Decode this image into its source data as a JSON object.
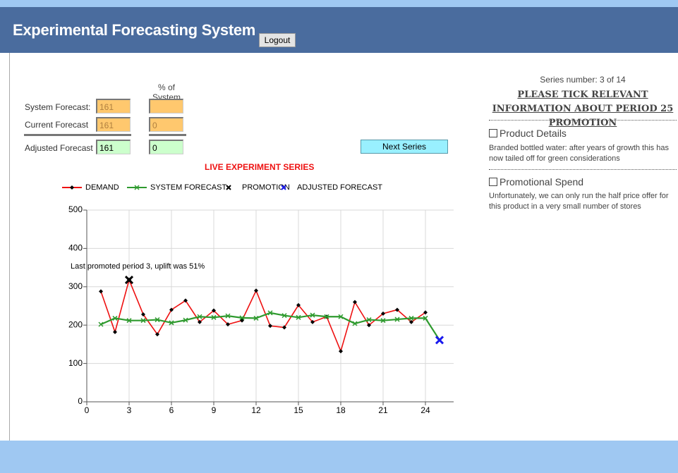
{
  "header": {
    "title": "Experimental Forecasting System",
    "logout": "Logout"
  },
  "form": {
    "percent_header": "% of System Forecast",
    "rows": [
      {
        "label": "System Forecast:",
        "value": 161,
        "percent": null
      },
      {
        "label": "Current Forecast",
        "value": 161,
        "percent": 0
      },
      {
        "label": "Adjusted Forecast",
        "value": 161,
        "percent": 0
      }
    ],
    "next_button": "Next Series"
  },
  "panel": {
    "series_number": "Series number: 3 of 14",
    "heading": "PLEASE TICK RELEVANT INFORMATION ABOUT PERIOD 25 PROMOTION",
    "items": [
      {
        "label": "Product Details",
        "description": "Branded bottled water: after years of growth this has now tailed off for green considerations"
      },
      {
        "label": "Promotional Spend",
        "description": "Unfortunately, we can only run the half price offer for this product in a very small number of stores"
      }
    ]
  },
  "chart_data": {
    "type": "line",
    "title": "LIVE EXPERIMENT SERIES",
    "annotation": "Last promoted period 3, uplift was 51%",
    "xlim": [
      0,
      26
    ],
    "xticks": [
      0,
      3,
      6,
      9,
      12,
      15,
      18,
      21,
      24
    ],
    "ylim": [
      0,
      500
    ],
    "yticks": [
      0,
      100,
      200,
      300,
      400,
      500
    ],
    "grid": true,
    "series": [
      {
        "name": "DEMAND",
        "color": "#ee1111",
        "marker": "diamond",
        "line": true,
        "x": [
          1,
          2,
          3,
          4,
          5,
          6,
          7,
          8,
          9,
          10,
          11,
          12,
          13,
          14,
          15,
          16,
          17,
          18,
          19,
          20,
          21,
          22,
          23,
          24
        ],
        "values": [
          288,
          182,
          318,
          228,
          176,
          240,
          264,
          208,
          238,
          202,
          212,
          290,
          198,
          194,
          252,
          208,
          222,
          132,
          260,
          200,
          230,
          240,
          208,
          233
        ]
      },
      {
        "name": "SYSTEM FORECAST",
        "color": "#2e9a2e",
        "marker": "x",
        "line": true,
        "x": [
          1,
          2,
          3,
          4,
          5,
          6,
          7,
          8,
          9,
          10,
          11,
          12,
          13,
          14,
          15,
          16,
          17,
          18,
          19,
          20,
          21,
          22,
          23,
          24,
          25
        ],
        "values": [
          202,
          218,
          212,
          212,
          214,
          206,
          213,
          222,
          220,
          224,
          219,
          218,
          232,
          225,
          220,
          226,
          222,
          222,
          204,
          214,
          212,
          215,
          218,
          218,
          161
        ]
      },
      {
        "name": "PROMOTION",
        "color": "#000000",
        "marker": "bigx",
        "line": false,
        "x": [
          3
        ],
        "values": [
          318
        ]
      },
      {
        "name": "ADJUSTED FORECAST",
        "color": "#1a1aee",
        "marker": "bigx",
        "line": false,
        "x": [
          25
        ],
        "values": [
          161
        ]
      }
    ]
  }
}
